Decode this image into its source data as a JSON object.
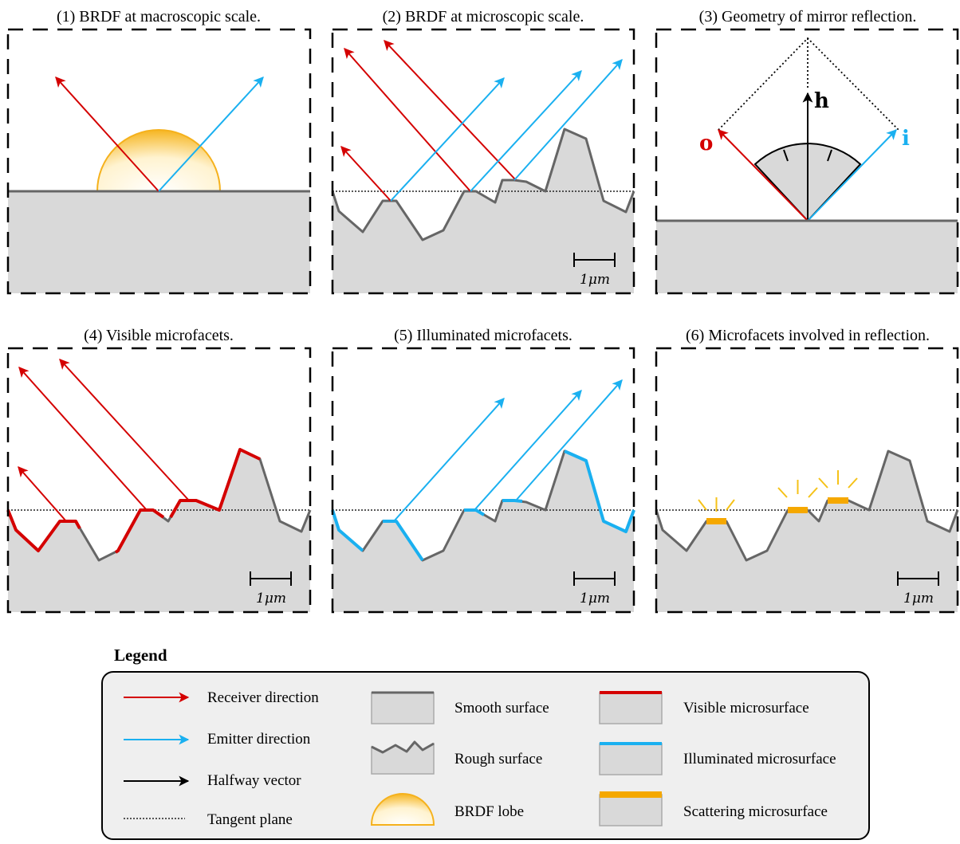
{
  "colors": {
    "receiver": "#d40000",
    "emitter": "#1ab0f0",
    "halfway": "#000000",
    "surface_fill": "#d9d9d9",
    "surface_line": "#666666",
    "lobe": "#f5b11c",
    "scatter": "#f5a800",
    "legend_bg": "#efefef"
  },
  "panels": {
    "p1": {
      "title": "(1) BRDF at macroscopic scale."
    },
    "p2": {
      "title": "(2) BRDF at microscopic scale.",
      "scale": "1"
    },
    "p3": {
      "title": "(3) Geometry of mirror reflection.",
      "o": "o",
      "i": "i",
      "h": "h"
    },
    "p4": {
      "title": "(4) Visible microfacets.",
      "scale": "1"
    },
    "p5": {
      "title": "(5) Illuminated microfacets.",
      "scale": "1"
    },
    "p6": {
      "title": "(6) Microfacets involved in reflection.",
      "scale": "1"
    }
  },
  "scale_unit": "μm",
  "legend": {
    "heading": "Legend",
    "items": [
      {
        "icon": "receiver-arrow-icon",
        "label": "Receiver direction"
      },
      {
        "icon": "emitter-arrow-icon",
        "label": "Emitter direction"
      },
      {
        "icon": "halfway-arrow-icon",
        "label": "Halfway vector"
      },
      {
        "icon": "tangent-plane-icon",
        "label": "Tangent plane"
      },
      {
        "icon": "smooth-surface-icon",
        "label": "Smooth surface"
      },
      {
        "icon": "rough-surface-icon",
        "label": "Rough surface"
      },
      {
        "icon": "brdf-lobe-icon",
        "label": "BRDF lobe"
      },
      {
        "icon": "visible-microsurface-icon",
        "label": "Visible microsurface"
      },
      {
        "icon": "illuminated-microsurface-icon",
        "label": "Illuminated microsurface"
      },
      {
        "icon": "scattering-microsurface-icon",
        "label": "Scattering microsurface"
      }
    ]
  }
}
